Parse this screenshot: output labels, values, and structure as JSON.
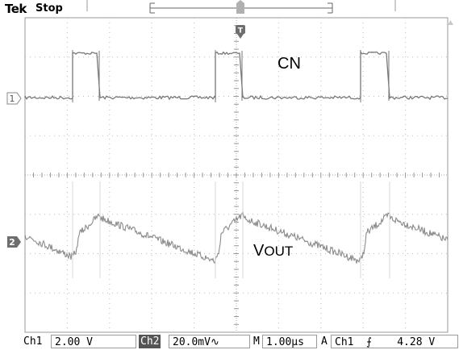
{
  "header": {
    "brand": "Tek",
    "run_state": "Stop"
  },
  "markers": {
    "trigger_marker": "T",
    "ch1_marker": "1",
    "ch2_marker": "2"
  },
  "labels": {
    "cn": "CN",
    "vout_main": "V",
    "vout_sub": "OUT"
  },
  "footer": {
    "ch1_name": "Ch1",
    "ch1_scale": "2.00 V",
    "ch2_name": "Ch2",
    "ch2_scale": "20.0mV",
    "ch2_coupling_symbol": "∿",
    "timebase_mode": "M",
    "timebase": "1.00µs",
    "trigger_mode": "A",
    "trigger_source": "Ch1",
    "trigger_slope_symbol": "⨍",
    "trigger_level": "4.28 V"
  },
  "colors": {
    "trace": "#777777",
    "graticule": "#bbbbbb",
    "marker_fill": "#6e6e6e"
  }
}
